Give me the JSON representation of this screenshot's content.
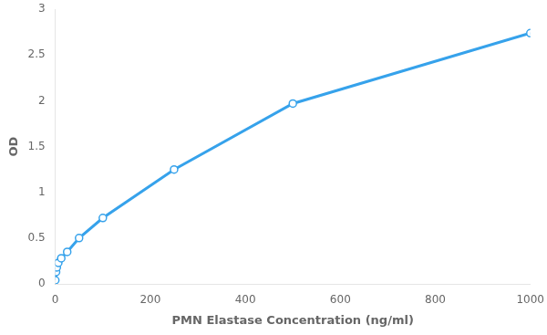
{
  "chart_data": {
    "type": "line",
    "x": [
      0,
      1.56,
      3.13,
      6.25,
      12.5,
      25,
      50,
      100,
      250,
      500,
      1000
    ],
    "values": [
      0.04,
      0.13,
      0.18,
      0.23,
      0.28,
      0.35,
      0.5,
      0.72,
      1.25,
      1.97,
      2.74
    ],
    "xlabel": "PMN Elastase Concentration (ng/ml)",
    "ylabel": "OD",
    "xlim": [
      0,
      1000
    ],
    "ylim": [
      0,
      3
    ],
    "xticks": [
      0,
      200,
      400,
      600,
      800,
      1000
    ],
    "yticks": [
      0,
      0.5,
      1,
      1.5,
      2,
      2.5,
      3
    ],
    "grid": false,
    "marker": "circle"
  }
}
